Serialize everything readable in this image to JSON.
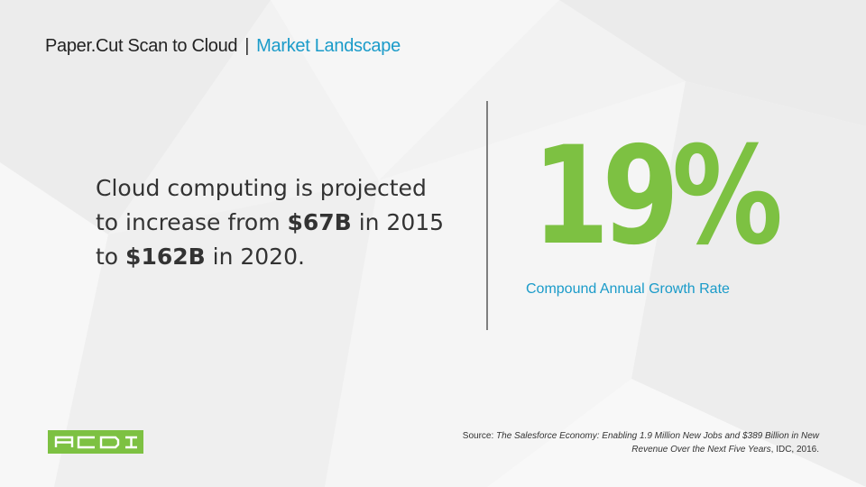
{
  "header": {
    "title_main": "Paper.Cut Scan to Cloud",
    "title_separator": "|",
    "title_accent": "Market Landscape"
  },
  "statement": {
    "line1": "Cloud computing is projected",
    "line2_prefix": "to increase from ",
    "line2_value": "$67B",
    "line2_suffix": " in 2015",
    "line3_prefix": "to ",
    "line3_value": "$162B",
    "line3_suffix": " in 2020."
  },
  "stat": {
    "value": "19%",
    "caption": "Compound Annual Growth Rate"
  },
  "logo": {
    "text": "ACDI"
  },
  "source": {
    "label": "Source: ",
    "title": "The Salesforce Economy: Enabling 1.9 Million New Jobs and $389 Billion in New Revenue Over the Next Five Years",
    "suffix": ", IDC, 2016."
  },
  "colors": {
    "accent_blue": "#1a9bc9",
    "accent_green": "#7dc142",
    "background": "#f2f2f2",
    "text": "#333333"
  }
}
